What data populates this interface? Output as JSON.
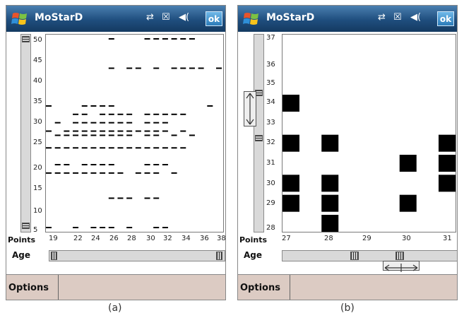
{
  "panels": [
    {
      "id": "a",
      "title": "MoStarD",
      "status_icons": "⇄ ☒ ◀(",
      "ok_label": "ok",
      "points_label": "Points",
      "age_label": "Age",
      "options_label": "Options",
      "caption": "(a)",
      "y_ticks": [
        "50",
        "45",
        "40",
        "35",
        "30",
        "25",
        "20",
        "15",
        "10",
        "5"
      ],
      "x_ticks": [
        "19",
        "22",
        "24",
        "26",
        "28",
        "30",
        "32",
        "34",
        "36",
        "38"
      ]
    },
    {
      "id": "b",
      "title": "MoStarD",
      "status_icons": "⇄ ☒ ◀(",
      "ok_label": "ok",
      "points_label": "Points",
      "age_label": "Age",
      "options_label": "Options",
      "caption": "(b)",
      "y_ticks": [
        "37",
        "36",
        "35",
        "34",
        "33",
        "32",
        "31",
        "30",
        "29",
        "28"
      ],
      "x_ticks": [
        "27",
        "28",
        "29",
        "30",
        "31"
      ]
    }
  ],
  "chart_data": [
    {
      "type": "scatter",
      "xlabel": "Age",
      "ylabel": "Points",
      "xlim": [
        19,
        38
      ],
      "ylim": [
        5,
        50
      ],
      "points": [
        [
          19,
          5
        ],
        [
          22,
          5
        ],
        [
          24,
          5
        ],
        [
          25,
          5
        ],
        [
          26,
          5
        ],
        [
          28,
          5
        ],
        [
          31,
          5
        ],
        [
          32,
          5
        ],
        [
          26,
          12
        ],
        [
          27,
          12
        ],
        [
          28,
          12
        ],
        [
          30,
          12
        ],
        [
          31,
          12
        ],
        [
          19,
          18
        ],
        [
          20,
          18
        ],
        [
          21,
          18
        ],
        [
          22,
          18
        ],
        [
          23,
          18
        ],
        [
          24,
          18
        ],
        [
          25,
          18
        ],
        [
          26,
          18
        ],
        [
          27,
          18
        ],
        [
          29,
          18
        ],
        [
          30,
          18
        ],
        [
          31,
          18
        ],
        [
          33,
          18
        ],
        [
          20,
          20
        ],
        [
          21,
          20
        ],
        [
          23,
          20
        ],
        [
          24,
          20
        ],
        [
          25,
          20
        ],
        [
          26,
          20
        ],
        [
          30,
          20
        ],
        [
          31,
          20
        ],
        [
          32,
          20
        ],
        [
          19,
          24
        ],
        [
          20,
          24
        ],
        [
          21,
          24
        ],
        [
          22,
          24
        ],
        [
          23,
          24
        ],
        [
          24,
          24
        ],
        [
          25,
          24
        ],
        [
          26,
          24
        ],
        [
          27,
          24
        ],
        [
          28,
          24
        ],
        [
          29,
          24
        ],
        [
          30,
          24
        ],
        [
          31,
          24
        ],
        [
          32,
          24
        ],
        [
          33,
          24
        ],
        [
          34,
          24
        ],
        [
          20,
          27
        ],
        [
          21,
          27
        ],
        [
          22,
          27
        ],
        [
          23,
          27
        ],
        [
          24,
          27
        ],
        [
          25,
          27
        ],
        [
          26,
          27
        ],
        [
          27,
          27
        ],
        [
          28,
          27
        ],
        [
          30,
          27
        ],
        [
          31,
          27
        ],
        [
          33,
          27
        ],
        [
          35,
          27
        ],
        [
          19,
          28
        ],
        [
          21,
          28
        ],
        [
          22,
          28
        ],
        [
          23,
          28
        ],
        [
          24,
          28
        ],
        [
          25,
          28
        ],
        [
          26,
          28
        ],
        [
          27,
          28
        ],
        [
          28,
          28
        ],
        [
          29,
          28
        ],
        [
          30,
          28
        ],
        [
          31,
          28
        ],
        [
          32,
          28
        ],
        [
          34,
          28
        ],
        [
          20,
          30
        ],
        [
          22,
          30
        ],
        [
          23,
          30
        ],
        [
          24,
          30
        ],
        [
          25,
          30
        ],
        [
          26,
          30
        ],
        [
          27,
          30
        ],
        [
          28,
          30
        ],
        [
          30,
          30
        ],
        [
          31,
          30
        ],
        [
          32,
          30
        ],
        [
          22,
          32
        ],
        [
          23,
          32
        ],
        [
          25,
          32
        ],
        [
          26,
          32
        ],
        [
          27,
          32
        ],
        [
          28,
          32
        ],
        [
          30,
          32
        ],
        [
          31,
          32
        ],
        [
          32,
          32
        ],
        [
          33,
          32
        ],
        [
          34,
          32
        ],
        [
          19,
          34
        ],
        [
          23,
          34
        ],
        [
          24,
          34
        ],
        [
          25,
          34
        ],
        [
          26,
          34
        ],
        [
          37,
          34
        ],
        [
          26,
          43
        ],
        [
          28,
          43
        ],
        [
          29,
          43
        ],
        [
          31,
          43
        ],
        [
          33,
          43
        ],
        [
          34,
          43
        ],
        [
          35,
          43
        ],
        [
          36,
          43
        ],
        [
          38,
          43
        ],
        [
          26,
          50
        ],
        [
          30,
          50
        ],
        [
          31,
          50
        ],
        [
          32,
          50
        ],
        [
          33,
          50
        ],
        [
          34,
          50
        ],
        [
          35,
          50
        ]
      ]
    },
    {
      "type": "scatter",
      "xlabel": "Age",
      "ylabel": "Points",
      "xlim": [
        27,
        31
      ],
      "ylim": [
        28,
        37
      ],
      "points": [
        [
          27,
          34
        ],
        [
          27,
          32
        ],
        [
          27,
          30
        ],
        [
          27,
          29
        ],
        [
          28,
          32
        ],
        [
          28,
          30
        ],
        [
          28,
          29
        ],
        [
          28,
          28
        ],
        [
          30,
          31
        ],
        [
          30,
          29
        ],
        [
          31,
          32
        ],
        [
          31,
          31
        ],
        [
          31,
          30
        ]
      ]
    }
  ]
}
